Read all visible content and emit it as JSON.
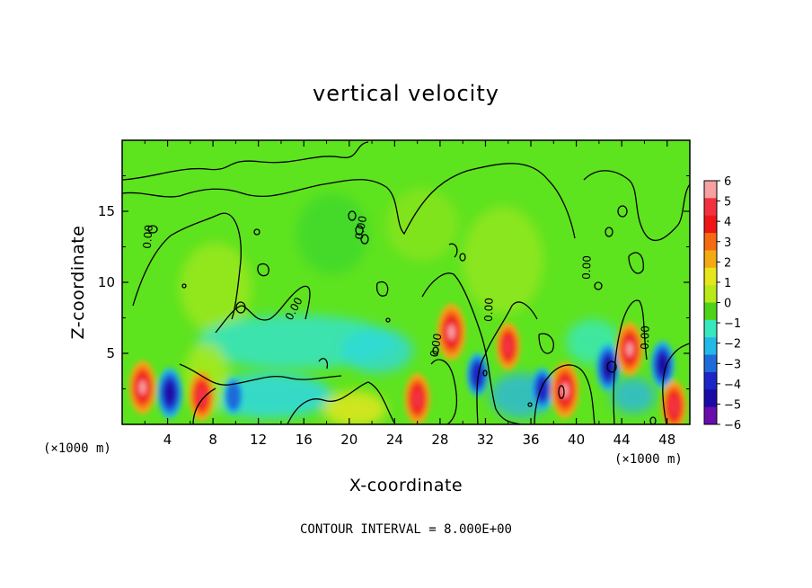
{
  "chart_data": {
    "type": "heatmap",
    "title": "vertical velocity",
    "xlabel": "X-coordinate",
    "ylabel": "Z-coordinate",
    "x_unit": "(×1000 m)",
    "y_unit": "(×1000 m)",
    "xlim": [
      0,
      50
    ],
    "ylim": [
      0,
      20
    ],
    "x_ticks": [
      4,
      8,
      12,
      16,
      20,
      24,
      28,
      32,
      36,
      40,
      44,
      48
    ],
    "y_ticks": [
      5,
      10,
      15
    ],
    "contour_interval_text": "CONTOUR INTERVAL = 8.000E+00",
    "contour_label": "0.00",
    "colorbar": {
      "ticks": [
        6,
        5,
        4,
        3,
        2,
        1,
        0,
        -1,
        -2,
        -3,
        -4,
        -5,
        -6
      ],
      "tick_labels": [
        "6",
        "5",
        "4",
        "3",
        "2",
        "1",
        "0",
        "−1",
        "−2",
        "−3",
        "−4",
        "−5",
        "−6"
      ],
      "colors": [
        "#f7a1a1",
        "#f23040",
        "#f01515",
        "#f56a12",
        "#f5a912",
        "#e6e61c",
        "#b7ea18",
        "#4fd31a",
        "#38e8bd",
        "#22b9e6",
        "#1e6bd9",
        "#1c25c6",
        "#1a0aa6",
        "#6a0dad"
      ],
      "vmin": -6,
      "vmax": 6
    },
    "features": [
      {
        "x": 1.8,
        "z": 2.6,
        "w": 5.5,
        "label": "updraft"
      },
      {
        "x": 4.2,
        "z": 2.2,
        "w": -5.0,
        "label": "downdraft"
      },
      {
        "x": 7.0,
        "z": 2.0,
        "w": 4.8,
        "label": "updraft"
      },
      {
        "x": 9.8,
        "z": 2.0,
        "w": -2.5,
        "label": "downdraft"
      },
      {
        "x": 26.0,
        "z": 1.8,
        "w": 5.0,
        "label": "updraft"
      },
      {
        "x": 29.0,
        "z": 6.5,
        "w": 6.0,
        "label": "updraft"
      },
      {
        "x": 31.3,
        "z": 3.5,
        "w": -3.8,
        "label": "downdraft"
      },
      {
        "x": 34.0,
        "z": 5.5,
        "w": 4.5,
        "label": "updraft"
      },
      {
        "x": 37.0,
        "z": 2.5,
        "w": -3.5,
        "label": "downdraft"
      },
      {
        "x": 39.0,
        "z": 2.4,
        "w": 6.0,
        "label": "updraft"
      },
      {
        "x": 42.8,
        "z": 4.0,
        "w": -4.5,
        "label": "downdraft"
      },
      {
        "x": 44.7,
        "z": 5.3,
        "w": 5.5,
        "label": "updraft"
      },
      {
        "x": 47.6,
        "z": 4.2,
        "w": -4.5,
        "label": "downdraft"
      },
      {
        "x": 48.6,
        "z": 1.3,
        "w": 5.0,
        "label": "updraft"
      }
    ]
  }
}
